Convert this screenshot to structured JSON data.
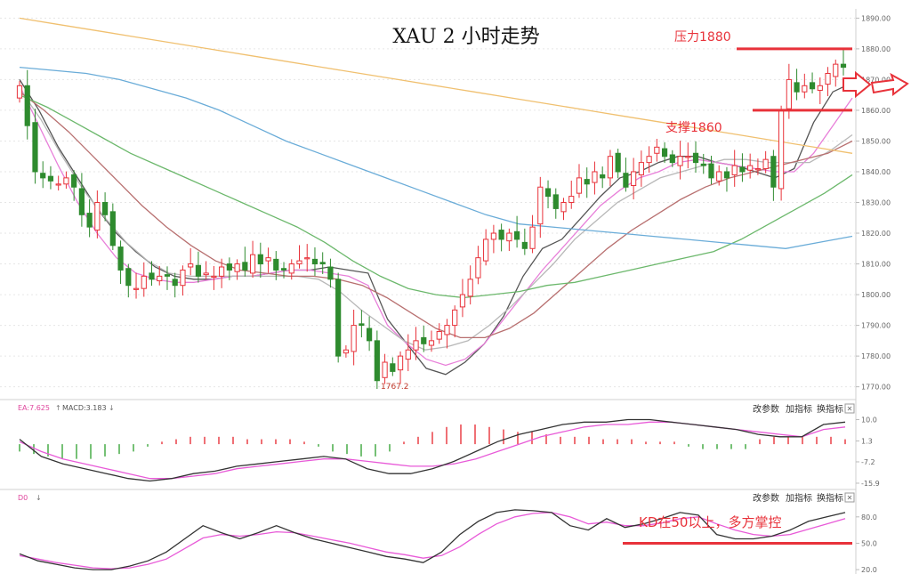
{
  "chart_data": [
    {
      "type": "candlestick",
      "title": "XAU 2 小时走势",
      "y_ticks": [
        1890.0,
        1880.0,
        1870.0,
        1860.0,
        1850.0,
        1840.0,
        1830.0,
        1820.0,
        1810.0,
        1800.0,
        1790.0,
        1780.0,
        1770.0
      ],
      "ylim": [
        1767,
        1893
      ],
      "low_marker": "1767.2",
      "resistance": {
        "label": "压力1880",
        "value": 1880
      },
      "support": {
        "label": "支撑1860",
        "value": 1860
      },
      "closes": [
        1868,
        1855,
        1840,
        1838,
        1837,
        1836,
        1838,
        1835,
        1826,
        1822,
        1830,
        1826,
        1816,
        1808,
        1803,
        1802,
        1806,
        1805,
        1806,
        1806,
        1803,
        1808,
        1810,
        1806,
        1807,
        1806,
        1809,
        1808,
        1810,
        1808,
        1813,
        1810,
        1812,
        1808,
        1808,
        1810,
        1811,
        1812,
        1810,
        1810,
        1805,
        1780,
        1782,
        1790,
        1790,
        1785,
        1772,
        1778,
        1775,
        1780,
        1782,
        1785,
        1784,
        1785,
        1788,
        1790,
        1795,
        1800,
        1805,
        1812,
        1818,
        1820,
        1818,
        1820,
        1818,
        1815,
        1822,
        1835,
        1832,
        1828,
        1830,
        1832,
        1838,
        1836,
        1840,
        1838,
        1845,
        1840,
        1835,
        1840,
        1843,
        1845,
        1848,
        1845,
        1843,
        1845,
        1845,
        1843,
        1842,
        1838,
        1840,
        1838,
        1842,
        1840,
        1842,
        1841,
        1844,
        1835,
        1860,
        1870,
        1866,
        1868,
        1867,
        1868,
        1872,
        1875,
        1874
      ],
      "ma_series": [
        {
          "color": "#555555",
          "values": [
            1870,
            1860,
            1848,
            1838,
            1828,
            1820,
            1814,
            1809,
            1806,
            1805,
            1805,
            1806,
            1806,
            1807,
            1808,
            1808,
            1809,
            1808,
            1807,
            1792,
            1784,
            1776,
            1774,
            1778,
            1784,
            1793,
            1806,
            1815,
            1818,
            1825,
            1832,
            1838,
            1840,
            1843,
            1845,
            1845,
            1843,
            1842,
            1840,
            1838,
            1841,
            1856,
            1866,
            1869
          ]
        },
        {
          "color": "#e87fd9",
          "values": [
            1868,
            1855,
            1842,
            1830,
            1820,
            1812,
            1807,
            1805,
            1804,
            1804,
            1805,
            1806,
            1806,
            1807,
            1808,
            1808,
            1807,
            1806,
            1803,
            1790,
            1784,
            1779,
            1777,
            1779,
            1784,
            1792,
            1800,
            1808,
            1815,
            1822,
            1829,
            1834,
            1838,
            1840,
            1843,
            1844,
            1843,
            1842,
            1841,
            1840,
            1840,
            1846,
            1855,
            1864
          ]
        },
        {
          "color": "#b8b8b8",
          "values": [
            1867,
            1857,
            1845,
            1834,
            1825,
            1817,
            1811,
            1807,
            1806,
            1806,
            1806,
            1806,
            1806,
            1806,
            1805,
            1801,
            1795,
            1790,
            1785,
            1782,
            1783,
            1785,
            1790,
            1796,
            1803,
            1810,
            1818,
            1824,
            1830,
            1834,
            1838,
            1840,
            1842,
            1844,
            1844,
            1843,
            1843,
            1843,
            1847,
            1852
          ]
        },
        {
          "color": "#b87070",
          "values": [
            1866,
            1860,
            1853,
            1845,
            1837,
            1829,
            1822,
            1816,
            1811,
            1808,
            1807,
            1806,
            1806,
            1805,
            1803,
            1799,
            1794,
            1789,
            1786,
            1786,
            1789,
            1794,
            1801,
            1808,
            1815,
            1821,
            1826,
            1831,
            1835,
            1838,
            1840,
            1842,
            1844,
            1846,
            1850
          ]
        },
        {
          "color": "#6cb86c",
          "values": [
            1865,
            1861,
            1856,
            1851,
            1846,
            1842,
            1838,
            1834,
            1830,
            1826,
            1822,
            1817,
            1811,
            1806,
            1802,
            1800,
            1799,
            1800,
            1801,
            1803,
            1804,
            1806,
            1808,
            1810,
            1812,
            1814,
            1818,
            1823,
            1828,
            1833,
            1839
          ]
        },
        {
          "color": "#6aacd8",
          "values": [
            1874,
            1873,
            1872,
            1870,
            1867,
            1864,
            1860,
            1855,
            1850,
            1846,
            1842,
            1838,
            1834,
            1830,
            1826,
            1823,
            1822,
            1821,
            1820,
            1819,
            1818,
            1817,
            1816,
            1815,
            1817,
            1819
          ]
        },
        {
          "color": "#f0c070",
          "values": [
            1890,
            1888,
            1886,
            1884,
            1882,
            1880,
            1878,
            1876,
            1874,
            1872,
            1870,
            1868,
            1866,
            1864,
            1862,
            1860,
            1858,
            1856,
            1854,
            1852,
            1850,
            1848,
            1846
          ]
        }
      ]
    },
    {
      "type": "macd",
      "legend_left": "EA:7.625",
      "legend_right": "MACD:3.183",
      "controls": [
        "改参数",
        "加指标",
        "换指标"
      ],
      "y_ticks": [
        10.0,
        1.3,
        -7.2,
        -15.9
      ],
      "ylim": [
        -17,
        12
      ],
      "dif": [
        2,
        -5,
        -8,
        -10,
        -12,
        -14,
        -15,
        -14,
        -12,
        -11,
        -9,
        -8,
        -7,
        -6,
        -5,
        -6,
        -10,
        -12,
        -12,
        -10,
        -7,
        -3,
        1,
        4,
        6,
        8,
        9,
        9,
        10,
        10,
        9,
        8,
        7,
        6,
        4,
        3,
        3,
        8,
        9
      ],
      "dea": [
        1,
        -3,
        -6,
        -8,
        -10,
        -12,
        -14,
        -14,
        -13,
        -12,
        -10,
        -9,
        -8,
        -7,
        -6,
        -6,
        -7,
        -8,
        -9,
        -9,
        -8,
        -6,
        -3,
        0,
        3,
        5,
        7,
        8,
        8,
        9,
        9,
        8,
        7,
        6,
        5,
        4,
        3,
        6,
        7
      ],
      "hist": [
        -3,
        -4,
        -5,
        -6,
        -6,
        -6,
        -5,
        -4,
        -3,
        -1,
        1,
        2,
        3,
        3,
        3,
        3,
        2,
        2,
        2,
        2,
        1,
        -1,
        -3,
        -4,
        -5,
        -5,
        -3,
        1,
        3,
        5,
        7,
        8,
        8,
        7,
        6,
        5,
        5,
        4,
        3,
        3,
        3,
        2,
        2,
        2,
        1,
        1,
        1,
        -1,
        -2,
        -2,
        -2,
        -2,
        2,
        3,
        3,
        3,
        3,
        3,
        2
      ]
    },
    {
      "type": "kd",
      "legend_left": "D0",
      "controls": [
        "改参数",
        "加指标",
        "换指标"
      ],
      "annotation": "KD在50以上，多方掌控",
      "reference": 50,
      "y_ticks": [
        80.0,
        50.0,
        20.0
      ],
      "ylim": [
        15,
        95
      ],
      "k": [
        38,
        30,
        26,
        22,
        20,
        20,
        24,
        30,
        40,
        55,
        70,
        62,
        55,
        62,
        70,
        62,
        55,
        50,
        45,
        40,
        35,
        32,
        28,
        40,
        60,
        75,
        85,
        88,
        87,
        85,
        70,
        65,
        78,
        68,
        72,
        78,
        85,
        82,
        60,
        55,
        55,
        58,
        65,
        75,
        80,
        85
      ],
      "d": [
        36,
        32,
        28,
        25,
        22,
        21,
        22,
        26,
        32,
        44,
        56,
        60,
        58,
        60,
        63,
        62,
        58,
        54,
        50,
        45,
        40,
        37,
        33,
        36,
        46,
        60,
        72,
        80,
        84,
        85,
        80,
        72,
        74,
        70,
        70,
        73,
        78,
        80,
        72,
        65,
        60,
        58,
        60,
        66,
        72,
        78
      ]
    }
  ]
}
